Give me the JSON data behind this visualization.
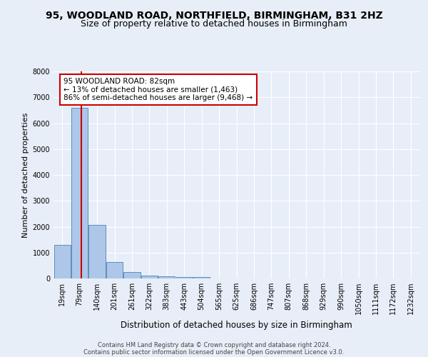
{
  "title_line1": "95, WOODLAND ROAD, NORTHFIELD, BIRMINGHAM, B31 2HZ",
  "title_line2": "Size of property relative to detached houses in Birmingham",
  "xlabel": "Distribution of detached houses by size in Birmingham",
  "ylabel": "Number of detached properties",
  "footer_line1": "Contains HM Land Registry data © Crown copyright and database right 2024.",
  "footer_line2": "Contains public sector information licensed under the Open Government Licence v3.0.",
  "categories": [
    "19sqm",
    "79sqm",
    "140sqm",
    "201sqm",
    "261sqm",
    "322sqm",
    "383sqm",
    "443sqm",
    "504sqm",
    "565sqm",
    "625sqm",
    "686sqm",
    "747sqm",
    "807sqm",
    "868sqm",
    "929sqm",
    "990sqm",
    "1050sqm",
    "1111sqm",
    "1172sqm",
    "1232sqm"
  ],
  "values": [
    1300,
    6580,
    2080,
    640,
    240,
    120,
    90,
    60,
    60,
    0,
    0,
    0,
    0,
    0,
    0,
    0,
    0,
    0,
    0,
    0,
    0
  ],
  "bar_color": "#aec6e8",
  "bar_edge_color": "#5a8fc0",
  "property_line_color": "#cc0000",
  "annotation_text": "95 WOODLAND ROAD: 82sqm\n← 13% of detached houses are smaller (1,463)\n86% of semi-detached houses are larger (9,468) →",
  "annotation_box_color": "#cc0000",
  "annotation_text_color": "#000000",
  "ylim": [
    0,
    8000
  ],
  "yticks": [
    0,
    1000,
    2000,
    3000,
    4000,
    5000,
    6000,
    7000,
    8000
  ],
  "background_color": "#e8eef7",
  "grid_color": "#ffffff",
  "title_fontsize": 10,
  "subtitle_fontsize": 9,
  "tick_fontsize": 7,
  "ylabel_fontsize": 8,
  "xlabel_fontsize": 8.5,
  "footer_fontsize": 6,
  "annotation_fontsize": 7.5
}
